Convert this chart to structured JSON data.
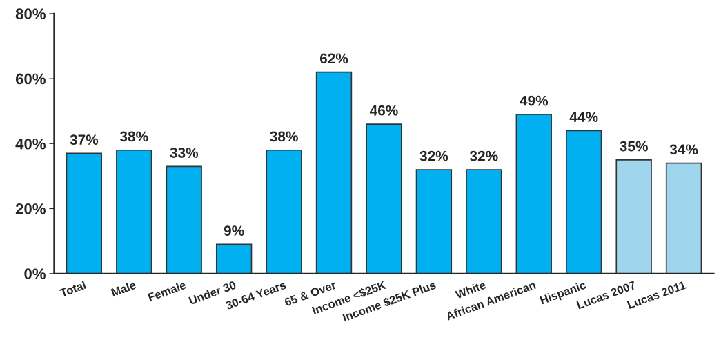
{
  "chart_data": {
    "type": "bar",
    "categories": [
      "Total",
      "Male",
      "Female",
      "Under 30",
      "30-64 Years",
      "65 & Over",
      "Income <$25K",
      "Income $25K Plus",
      "White",
      "African American",
      "Hispanic",
      "Lucas 2007",
      "Lucas 2011"
    ],
    "values": [
      37,
      38,
      33,
      9,
      38,
      62,
      46,
      32,
      32,
      49,
      44,
      35,
      34
    ],
    "value_labels": [
      "37%",
      "38%",
      "33%",
      "9%",
      "38%",
      "62%",
      "46%",
      "32%",
      "32%",
      "49%",
      "44%",
      "35%",
      "34%"
    ],
    "colors": [
      "#00b0f0",
      "#00b0f0",
      "#00b0f0",
      "#00b0f0",
      "#00b0f0",
      "#00b0f0",
      "#00b0f0",
      "#00b0f0",
      "#00b0f0",
      "#00b0f0",
      "#00b0f0",
      "#9fd6ee",
      "#9fd6ee"
    ],
    "ylim": [
      0,
      80
    ],
    "yticks": [
      {
        "value": 0,
        "label": "0%"
      },
      {
        "value": 20,
        "label": "20%"
      },
      {
        "value": 40,
        "label": "40%"
      },
      {
        "value": 60,
        "label": "60%"
      },
      {
        "value": 80,
        "label": "80%"
      }
    ],
    "grid": false
  }
}
